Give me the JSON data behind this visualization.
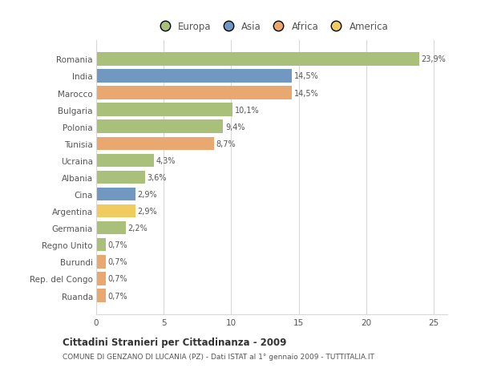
{
  "countries": [
    "Romania",
    "India",
    "Marocco",
    "Bulgaria",
    "Polonia",
    "Tunisia",
    "Ucraina",
    "Albania",
    "Cina",
    "Argentina",
    "Germania",
    "Regno Unito",
    "Burundi",
    "Rep. del Congo",
    "Ruanda"
  ],
  "values": [
    23.9,
    14.5,
    14.5,
    10.1,
    9.4,
    8.7,
    4.3,
    3.6,
    2.9,
    2.9,
    2.2,
    0.7,
    0.7,
    0.7,
    0.7
  ],
  "labels": [
    "23,9%",
    "14,5%",
    "14,5%",
    "10,1%",
    "9,4%",
    "8,7%",
    "4,3%",
    "3,6%",
    "2,9%",
    "2,9%",
    "2,2%",
    "0,7%",
    "0,7%",
    "0,7%",
    "0,7%"
  ],
  "colors": [
    "#a8c07a",
    "#7098c0",
    "#e8a870",
    "#a8c07a",
    "#a8c07a",
    "#e8a870",
    "#a8c07a",
    "#a8c07a",
    "#7098c0",
    "#f0cc60",
    "#a8c07a",
    "#a8c07a",
    "#e8a870",
    "#e8a870",
    "#e8a870"
  ],
  "legend_labels": [
    "Europa",
    "Asia",
    "Africa",
    "America"
  ],
  "legend_colors": [
    "#a8c07a",
    "#7098c0",
    "#e8a870",
    "#f0cc60"
  ],
  "title": "Cittadini Stranieri per Cittadinanza - 2009",
  "subtitle": "COMUNE DI GENZANO DI LUCANIA (PZ) - Dati ISTAT al 1° gennaio 2009 - TUTTITALIA.IT",
  "xlim": [
    0,
    26
  ],
  "xticks": [
    0,
    5,
    10,
    15,
    20,
    25
  ],
  "background_color": "#ffffff",
  "grid_color": "#d8d8d8",
  "bar_height": 0.78
}
